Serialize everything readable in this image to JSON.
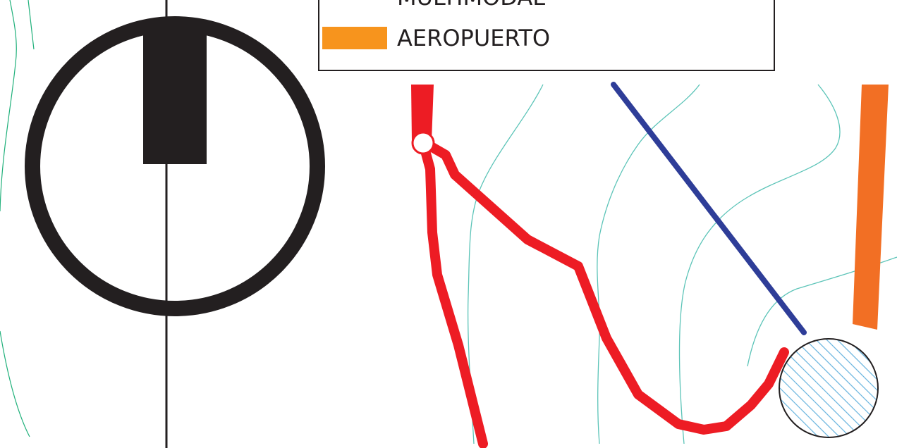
{
  "legend": {
    "items": [
      {
        "label": "MULTIMODAL",
        "swatch_color": ""
      },
      {
        "label": "AEROPUERTO",
        "swatch_color": "#f7941d"
      }
    ]
  },
  "colors": {
    "route_red": "#ed1c24",
    "route_blue": "#2e3d98",
    "route_orange": "#f26f24",
    "contour_green": "#1fb07a",
    "contour_teal": "#5cc4b8",
    "hatch_blue": "#6fb7e0",
    "symbol_black": "#231f20"
  },
  "symbols": {
    "north_arrow": "north-arrow-icon",
    "node": "junction-node-icon",
    "hub": "airport-hub-icon"
  }
}
